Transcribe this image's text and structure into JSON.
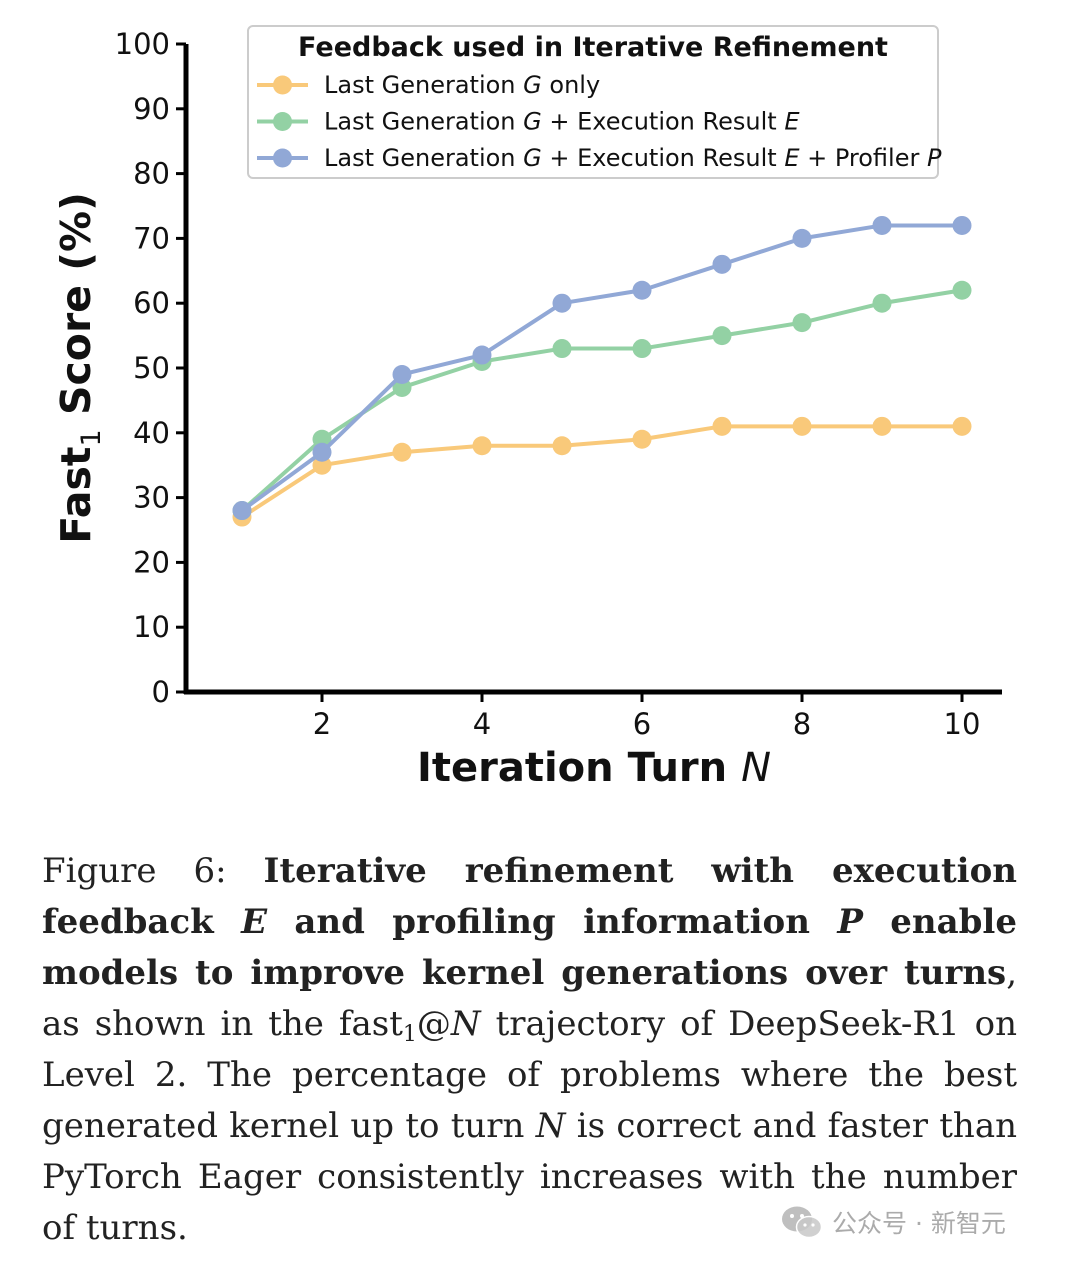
{
  "chart_data": {
    "type": "line",
    "x": [
      1,
      2,
      3,
      4,
      5,
      6,
      7,
      8,
      9,
      10
    ],
    "xticks": [
      2,
      4,
      6,
      8,
      10
    ],
    "yticks": [
      0,
      10,
      20,
      30,
      40,
      50,
      60,
      70,
      80,
      90,
      100
    ],
    "xlim": [
      0.3,
      10.5
    ],
    "ylim": [
      0,
      100
    ],
    "ylabel": "Fast",
    "ylabel_sub": "1",
    "ylabel_rest": " Score (%)",
    "xlabel": "Iteration Turn ",
    "xlabel_var": "N",
    "legend_title": "Feedback used in Iterative Refinement",
    "legend_position": "top",
    "grid": false,
    "series": [
      {
        "name_parts": [
          {
            "t": "Last Generation "
          },
          {
            "t": "G",
            "i": true
          },
          {
            "t": " only"
          }
        ],
        "color": "#f9c97a",
        "values": [
          27,
          35,
          37,
          38,
          38,
          39,
          41,
          41,
          41,
          41
        ]
      },
      {
        "name_parts": [
          {
            "t": "Last Generation "
          },
          {
            "t": "G",
            "i": true
          },
          {
            "t": " + Execution Result "
          },
          {
            "t": "E",
            "i": true
          }
        ],
        "color": "#93d1a4",
        "values": [
          28,
          39,
          47,
          51,
          53,
          53,
          55,
          57,
          60,
          62
        ]
      },
      {
        "name_parts": [
          {
            "t": "Last Generation "
          },
          {
            "t": "G",
            "i": true
          },
          {
            "t": " + Execution Result "
          },
          {
            "t": "E",
            "i": true
          },
          {
            "t": " + Profiler "
          },
          {
            "t": "P",
            "i": true
          }
        ],
        "color": "#91a8d6",
        "values": [
          28,
          37,
          49,
          52,
          60,
          62,
          66,
          70,
          72,
          72
        ]
      }
    ]
  },
  "caption": {
    "label": "Figure 6: ",
    "bold_1": "Iterative refinement with execution feedback ",
    "bold_e": "E",
    "bold_2": " and profiling information ",
    "bold_p": "P",
    "bold_3": " enable models to improve kernel generations over turns",
    "rest_1": ", as shown in the fast",
    "rest_sub": "1",
    "rest_at": "@",
    "rest_n": "N",
    "rest_2": " trajectory of DeepSeek-R1 on Level 2. The percentage of problems where the best generated kernel up to turn ",
    "rest_n2": "N",
    "rest_3": " is correct and faster than PyTorch Eager consistently increases with the number of turns."
  },
  "watermark": {
    "icon": "wechat-icon",
    "text": "公众号 · 新智元"
  }
}
